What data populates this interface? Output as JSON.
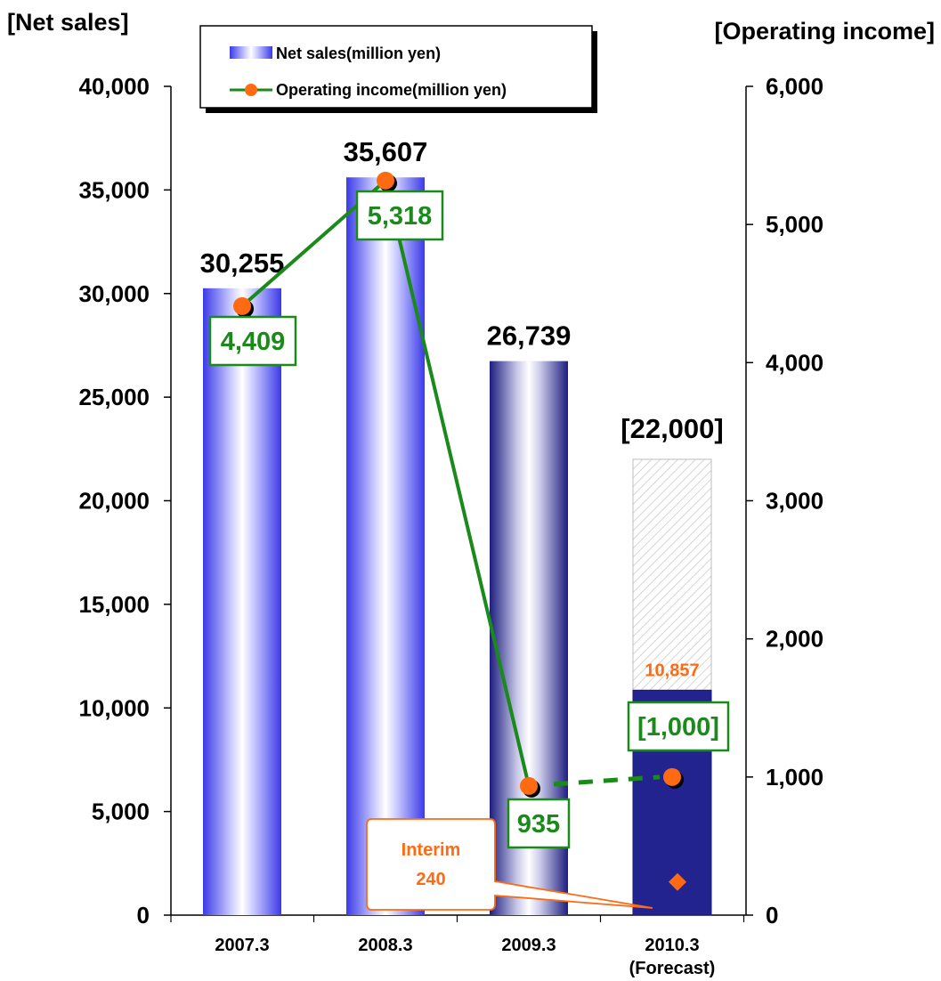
{
  "chart_data": {
    "type": "bar",
    "categories": [
      "2007.3",
      "2008.3",
      "2009.3",
      "2010.3"
    ],
    "category_sublabels": [
      "",
      "",
      "",
      "(Forecast)"
    ],
    "y_left_title": "[Net sales]",
    "y_right_title": "[Operating income]",
    "ylim_left": [
      0,
      40000
    ],
    "ylim_right": [
      0,
      6000
    ],
    "left_ticks": [
      "0",
      "5,000",
      "10,000",
      "15,000",
      "20,000",
      "25,000",
      "30,000",
      "35,000",
      "40,000"
    ],
    "right_ticks": [
      "0",
      "1,000",
      "2,000",
      "3,000",
      "4,000",
      "5,000",
      "6,000"
    ],
    "series": [
      {
        "name": "Net sales(million yen)",
        "axis": "left",
        "values": [
          30255,
          35607,
          26739,
          10857
        ],
        "labels": [
          "30,255",
          "35,607",
          "26,739",
          "10,857"
        ]
      },
      {
        "name": "Operating income(million yen)",
        "axis": "right",
        "values": [
          4409,
          5318,
          935,
          1000
        ],
        "labels": [
          "4,409",
          "5,318",
          "935",
          "[1,000]"
        ]
      }
    ],
    "forecast": {
      "net_sales": 22000,
      "net_sales_label": "[22,000]"
    },
    "annotation": {
      "lines": [
        "Interim",
        "240"
      ],
      "value": 240
    },
    "legend_position": "top-left",
    "grid": false
  }
}
